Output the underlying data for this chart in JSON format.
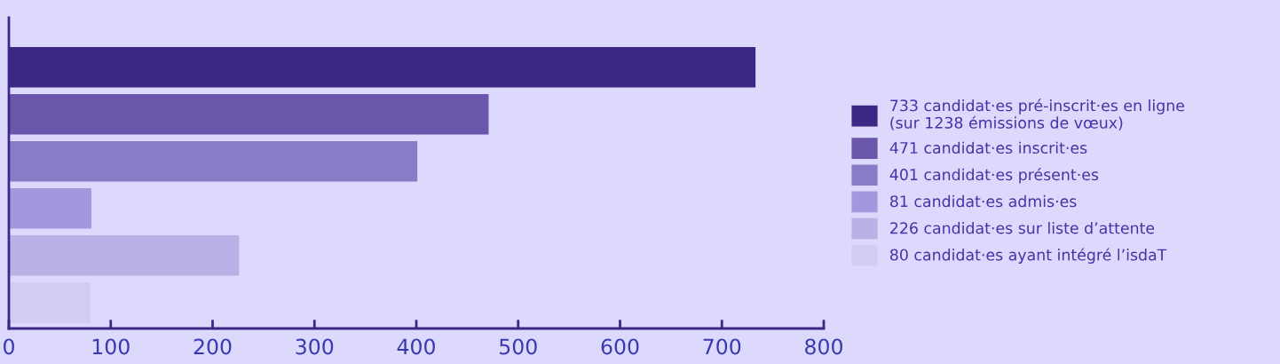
{
  "chart_data": {
    "type": "bar",
    "orientation": "horizontal",
    "categories": [
      null,
      null,
      null,
      null,
      null,
      null
    ],
    "series": [
      {
        "name": "733 candidat·es pré-inscrit·es en ligne\n(sur 1238 émissions de vœux)",
        "color": "#3d2785",
        "values": [
          733,
          null,
          null,
          null,
          null,
          null
        ]
      },
      {
        "name": "471 candidat·es inscrit·es",
        "color": "#6a56ab",
        "values": [
          null,
          471,
          null,
          null,
          null,
          null
        ]
      },
      {
        "name": "401 candidat·es présent·es",
        "color": "#8a7bc8",
        "values": [
          null,
          null,
          401,
          null,
          null,
          null
        ]
      },
      {
        "name": "81 candidat·es admis·es",
        "color": "#a597dd",
        "values": [
          null,
          null,
          null,
          81,
          null,
          null
        ]
      },
      {
        "name": "226 candidat·es sur liste d’attente",
        "color": "#bcb1e7",
        "values": [
          null,
          null,
          null,
          null,
          226,
          null
        ]
      },
      {
        "name": "80 candidat·es ayant intégré l’isdaT",
        "color": "#d2cbf4",
        "values": [
          null,
          null,
          null,
          null,
          null,
          80
        ]
      }
    ],
    "xlim": [
      0,
      800
    ],
    "xticks": [
      0,
      100,
      200,
      300,
      400,
      500,
      600,
      700,
      800
    ],
    "tick_labels": "x",
    "grid": false,
    "legend": "right"
  }
}
